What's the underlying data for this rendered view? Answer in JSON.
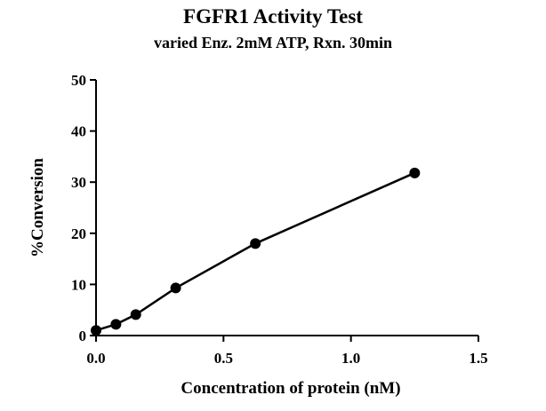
{
  "chart_data": {
    "type": "line",
    "title": "FGFR1 Activity Test",
    "subtitle": "varied Enz. 2mM ATP, Rxn. 30min",
    "xlabel": "Concentration of protein (nM)",
    "ylabel": "%Conversion",
    "xlim": [
      0,
      1.5
    ],
    "ylim": [
      0,
      50
    ],
    "xticks": [
      "0.0",
      "0.5",
      "1.0",
      "1.5"
    ],
    "yticks": [
      "0",
      "10",
      "20",
      "30",
      "40",
      "50"
    ],
    "grid": false,
    "series": [
      {
        "x": [
          0,
          0.078,
          0.156,
          0.3125,
          0.625,
          1.25
        ],
        "y": [
          1.0,
          2.2,
          4.1,
          9.3,
          18.0,
          31.8
        ]
      }
    ],
    "colors": {
      "line": "#000000",
      "marker": "#000000"
    }
  }
}
